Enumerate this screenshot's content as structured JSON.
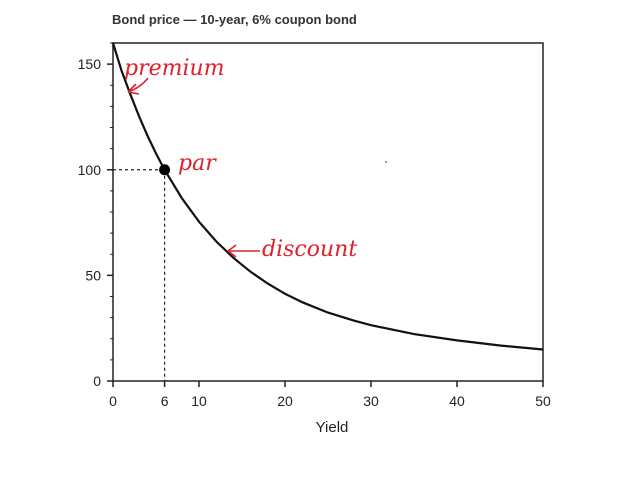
{
  "chart_data": {
    "type": "line",
    "title": "Bond price — 10-year, 6% coupon bond",
    "xlabel": "Yield",
    "ylabel": "",
    "xlim": [
      0,
      50
    ],
    "ylim": [
      0,
      160
    ],
    "xticks": [
      0,
      6,
      10,
      20,
      30,
      40,
      50
    ],
    "yticks": [
      0,
      50,
      100,
      150
    ],
    "series": [
      {
        "x": [
          0,
          1,
          2,
          3,
          4,
          5,
          6,
          8,
          10,
          12,
          14,
          16,
          18,
          20,
          22,
          25,
          28,
          30,
          35,
          40,
          45,
          50
        ],
        "y": [
          160,
          146.8,
          135.9,
          125.6,
          116.2,
          107.7,
          100,
          86.6,
          75.4,
          66.1,
          58.3,
          51.7,
          46.1,
          41.3,
          37.3,
          32.4,
          28.6,
          26.4,
          22.2,
          19.2,
          16.8,
          14.9
        ]
      }
    ],
    "marked_point": {
      "x": 6,
      "y": 100
    },
    "annotations": [
      "premium",
      "par",
      "discount"
    ]
  }
}
